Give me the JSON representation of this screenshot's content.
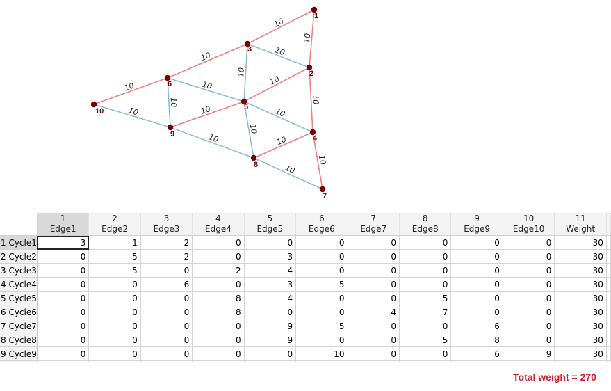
{
  "colors": {
    "cycle_edge": "#f08080",
    "other_edge": "#8cbcdc",
    "node": "#7a0000",
    "total": "#d0202a"
  },
  "graph": {
    "edges": [
      {
        "from": "1",
        "to": "3",
        "weight": "10",
        "in_cycle": true
      },
      {
        "from": "1",
        "to": "2",
        "weight": "10",
        "in_cycle": true
      },
      {
        "from": "3",
        "to": "2",
        "weight": "10",
        "in_cycle": false
      },
      {
        "from": "3",
        "to": "6",
        "weight": "10",
        "in_cycle": true
      },
      {
        "from": "3",
        "to": "5",
        "weight": "10",
        "in_cycle": false
      },
      {
        "from": "2",
        "to": "5",
        "weight": "10",
        "in_cycle": true
      },
      {
        "from": "2",
        "to": "4",
        "weight": "10",
        "in_cycle": true
      },
      {
        "from": "6",
        "to": "10",
        "weight": "10",
        "in_cycle": true
      },
      {
        "from": "6",
        "to": "5",
        "weight": "10",
        "in_cycle": false
      },
      {
        "from": "6",
        "to": "9",
        "weight": "10",
        "in_cycle": false
      },
      {
        "from": "10",
        "to": "9",
        "weight": "10",
        "in_cycle": false
      },
      {
        "from": "9",
        "to": "5",
        "weight": "10",
        "in_cycle": true
      },
      {
        "from": "5",
        "to": "4",
        "weight": "10",
        "in_cycle": false
      },
      {
        "from": "5",
        "to": "8",
        "weight": "10",
        "in_cycle": false
      },
      {
        "from": "9",
        "to": "8",
        "weight": "10",
        "in_cycle": false
      },
      {
        "from": "8",
        "to": "4",
        "weight": "10",
        "in_cycle": true
      },
      {
        "from": "8",
        "to": "7",
        "weight": "10",
        "in_cycle": false
      },
      {
        "from": "4",
        "to": "7",
        "weight": "10",
        "in_cycle": true
      }
    ]
  },
  "table": {
    "columns": [
      {
        "num": "1",
        "name": "Edge1"
      },
      {
        "num": "2",
        "name": "Edge2"
      },
      {
        "num": "3",
        "name": "Edge3"
      },
      {
        "num": "4",
        "name": "Edge4"
      },
      {
        "num": "5",
        "name": "Edge5"
      },
      {
        "num": "6",
        "name": "Edge6"
      },
      {
        "num": "7",
        "name": "Edge7"
      },
      {
        "num": "8",
        "name": "Edge8"
      },
      {
        "num": "9",
        "name": "Edge9"
      },
      {
        "num": "10",
        "name": "Edge10"
      },
      {
        "num": "11",
        "name": "Weight"
      }
    ],
    "rows": [
      {
        "label": "1 Cycle1",
        "cells": [
          "3",
          "1",
          "2",
          "0",
          "0",
          "0",
          "0",
          "0",
          "0",
          "0",
          "30"
        ]
      },
      {
        "label": "2 Cycle2",
        "cells": [
          "0",
          "5",
          "2",
          "0",
          "3",
          "0",
          "0",
          "0",
          "0",
          "0",
          "30"
        ]
      },
      {
        "label": "3 Cycle3",
        "cells": [
          "0",
          "5",
          "0",
          "2",
          "4",
          "0",
          "0",
          "0",
          "0",
          "0",
          "30"
        ]
      },
      {
        "label": "4 Cycle4",
        "cells": [
          "0",
          "0",
          "6",
          "0",
          "3",
          "5",
          "0",
          "0",
          "0",
          "0",
          "30"
        ]
      },
      {
        "label": "5 Cycle5",
        "cells": [
          "0",
          "0",
          "0",
          "8",
          "4",
          "0",
          "0",
          "5",
          "0",
          "0",
          "30"
        ]
      },
      {
        "label": "6 Cycle6",
        "cells": [
          "0",
          "0",
          "0",
          "8",
          "0",
          "0",
          "4",
          "7",
          "0",
          "0",
          "30"
        ]
      },
      {
        "label": "7 Cycle7",
        "cells": [
          "0",
          "0",
          "0",
          "0",
          "9",
          "5",
          "0",
          "0",
          "6",
          "0",
          "30"
        ]
      },
      {
        "label": "8 Cycle8",
        "cells": [
          "0",
          "0",
          "0",
          "0",
          "9",
          "0",
          "0",
          "5",
          "8",
          "0",
          "30"
        ]
      },
      {
        "label": "9 Cycle9",
        "cells": [
          "0",
          "0",
          "0",
          "0",
          "0",
          "10",
          "0",
          "0",
          "6",
          "9",
          "30"
        ]
      }
    ]
  },
  "total": "Total weight = 270"
}
